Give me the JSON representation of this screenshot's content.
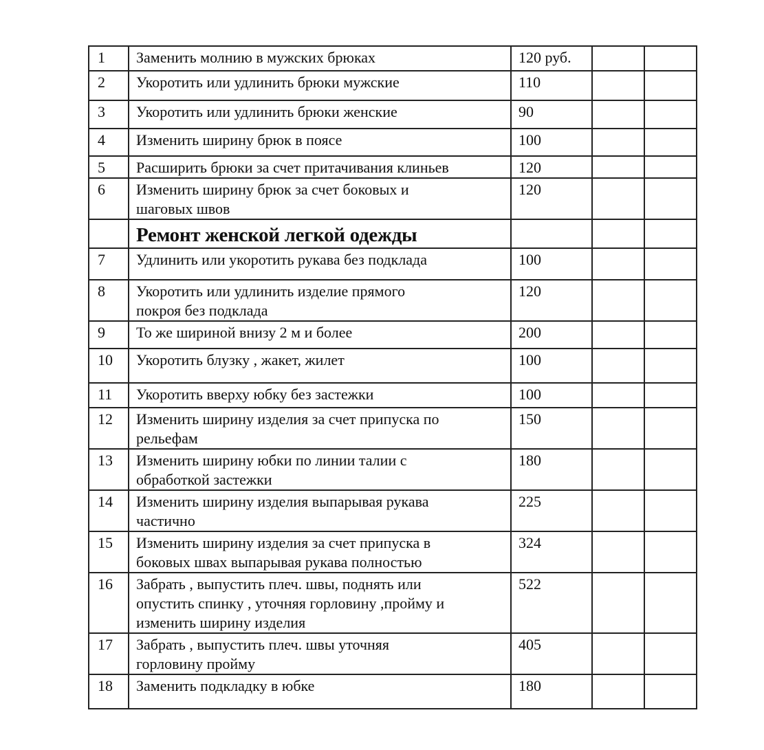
{
  "section_title": "Ремонт женской легкой одежды",
  "rows": [
    {
      "num": "1",
      "desc": "Заменить  молнию в мужских брюках",
      "price": "120 руб."
    },
    {
      "num": "2",
      "desc": "Укоротить  или удлинить брюки  мужские",
      "price": "110"
    },
    {
      "num": "3",
      "desc": "Укоротить  или удлинить брюки  женские",
      "price": "90"
    },
    {
      "num": "4",
      "desc": "Изменить ширину брюк в поясе",
      "price": "100"
    },
    {
      "num": "5",
      "desc": "Расширить брюки за счет  притачивания  клиньев",
      "price": "120"
    },
    {
      "num": "6",
      "desc": "Изменить ширину брюк за счет  боковых  и\nшаговых  швов",
      "price": "120"
    },
    {
      "num": "7",
      "desc": "Удлинить  или укоротить  рукава  без  подклада",
      "price": "100"
    },
    {
      "num": "8",
      "desc": "Укоротить   или  удлинить  изделие  прямого\nпокроя без подклада",
      "price": "120"
    },
    {
      "num": "9",
      "desc": "То же шириной внизу  2 м и более",
      "price": "200"
    },
    {
      "num": "10",
      "desc": "Укоротить  блузку , жакет, жилет",
      "price": "100"
    },
    {
      "num": "11",
      "desc": "Укоротить  вверху юбку  без застежки",
      "price": "100"
    },
    {
      "num": "12",
      "desc": "Изменить ширину изделия за счет  припуска по\nрельефам",
      "price": "150"
    },
    {
      "num": "13",
      "desc": "Изменить  ширину юбки  по линии талии с\nобработкой застежки",
      "price": "180"
    },
    {
      "num": "14",
      "desc": "Изменить  ширину изделия выпарывая рукава\nчастично",
      "price": "225"
    },
    {
      "num": "15",
      "desc": "Изменить  ширину изделия  за счет припуска в\nбоковых швах выпарывая рукава полностью",
      "price": "324"
    },
    {
      "num": "16",
      "desc": "Забрать , выпустить плеч. швы, поднять  или\nопустить спинку , уточняя горловину ,пройму  и\nизменить ширину изделия",
      "price": "522"
    },
    {
      "num": "17",
      "desc": "Забрать , выпустить  плеч. швы  уточняя\nгорловину пройму",
      "price": "405"
    },
    {
      "num": "18",
      "desc": "Заменить  подкладку в юбке",
      "price": "180"
    }
  ]
}
